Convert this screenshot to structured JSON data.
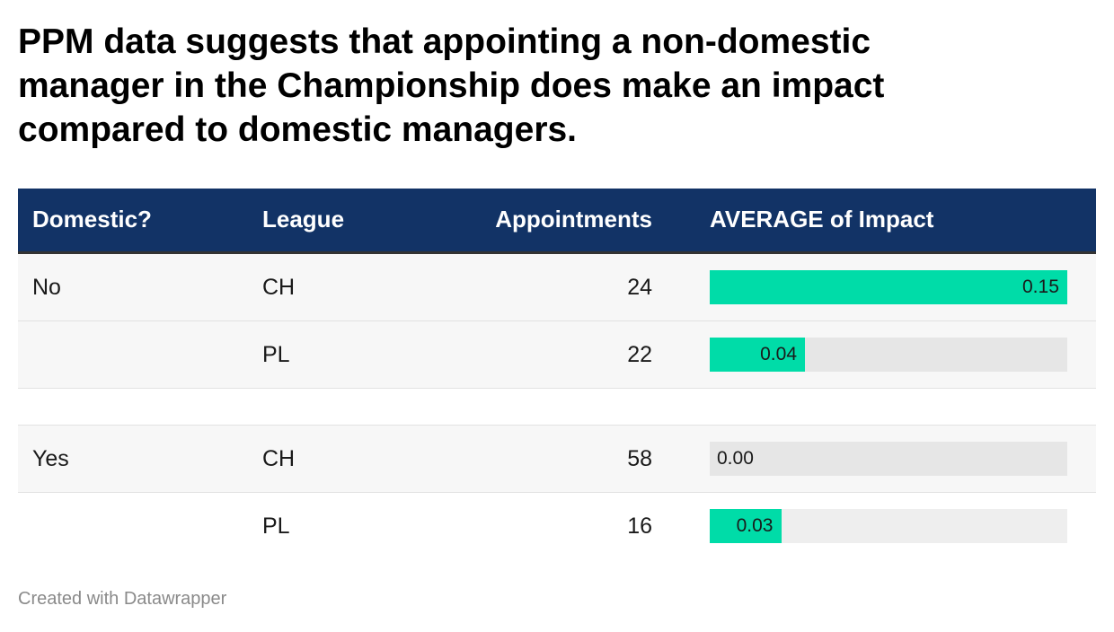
{
  "title_lines": [
    "PPM data suggests that appointing a non-domestic",
    "manager in the Championship does make an impact",
    "compared to domestic managers."
  ],
  "footer": "Created with Datawrapper",
  "colors": {
    "header_bg": "#123366",
    "bar": "#00dca8",
    "bar_track": "#e6e6e6"
  },
  "chart_data": {
    "type": "table",
    "columns": [
      "Domestic?",
      "League",
      "Appointments",
      "AVERAGE of Impact"
    ],
    "bar_max": 0.15,
    "rows": [
      {
        "domestic": "No",
        "league": "CH",
        "appointments": "24",
        "impact": 0.15,
        "impact_label": "0.15"
      },
      {
        "domestic": "",
        "league": "PL",
        "appointments": "22",
        "impact": 0.04,
        "impact_label": "0.04"
      },
      {
        "domestic": "Yes",
        "league": "CH",
        "appointments": "58",
        "impact": 0.0,
        "impact_label": "0.00"
      },
      {
        "domestic": "",
        "league": "PL",
        "appointments": "16",
        "impact": 0.03,
        "impact_label": "0.03"
      }
    ]
  }
}
